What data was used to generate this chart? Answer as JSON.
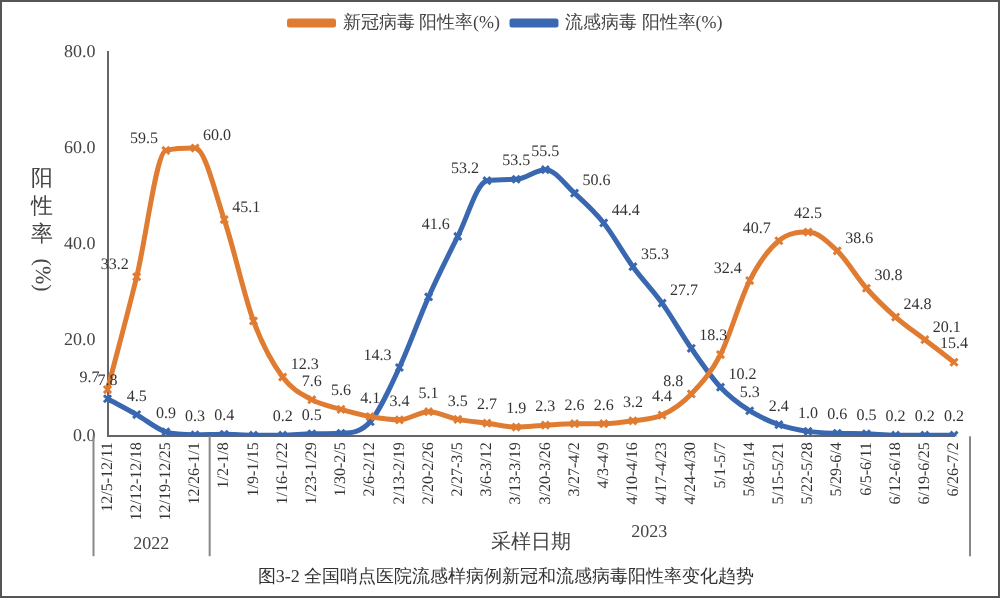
{
  "chart_data": {
    "type": "line",
    "title": "图3-2 全国哨点医院流感样病例新冠和流感病毒阳性率变化趋势",
    "xlabel": "采样日期",
    "ylabel": "阳性率(%)",
    "categories": [
      "12/5-12/11",
      "12/12-12/18",
      "12/19-12/25",
      "12/26-1/1",
      "1/2-1/8",
      "1/9-1/15",
      "1/16-1/22",
      "1/23-1/29",
      "1/30-2/5",
      "2/6-2/12",
      "2/13-2/19",
      "2/20-2/26",
      "2/27-3/5",
      "3/6-3/12",
      "3/13-3/19",
      "3/20-3/26",
      "3/27-4/2",
      "4/3-4/9",
      "4/10-4/16",
      "4/17-4/23",
      "4/24-4/30",
      "5/1-5/7",
      "5/8-5/14",
      "5/15-5/21",
      "5/22-5/28",
      "5/29-6/4",
      "6/5-6/11",
      "6/12-6/18",
      "6/19-6/25",
      "6/26-7/2"
    ],
    "series": [
      {
        "name": "新冠病毒 阳性率(%)",
        "color": "#e07b32",
        "values": [
          9.7,
          33.2,
          59.5,
          60.0,
          45.1,
          24,
          12.3,
          7.6,
          5.6,
          4.1,
          3.4,
          5.1,
          3.5,
          2.7,
          1.9,
          2.3,
          2.6,
          2.6,
          3.2,
          4.4,
          8.8,
          17,
          32.4,
          40.7,
          42.5,
          38.6,
          30.8,
          24.8,
          20.1,
          15.4
        ],
        "value_labels": [
          "9.7",
          "33.2",
          "59.5",
          "60.0",
          "45.1",
          null,
          "12.3",
          "7.6",
          "5.6",
          "4.1",
          "3.4",
          "5.1",
          "3.5",
          "2.7",
          "1.9",
          "2.3",
          "2.6",
          "2.6",
          "3.2",
          "4.4",
          "8.8",
          null,
          "32.4",
          "40.7",
          "42.5",
          "38.6",
          "30.8",
          "24.8",
          "20.1",
          "15.4"
        ]
      },
      {
        "name": "流感病毒 阳性率(%)",
        "color": "#3a68b0",
        "values": [
          7.8,
          4.5,
          0.9,
          0.3,
          0.4,
          0.2,
          0.2,
          0.5,
          0.6,
          3.0,
          14.3,
          29,
          41.6,
          53.2,
          53.5,
          55.5,
          50.6,
          44.4,
          35.3,
          27.7,
          18.3,
          10.2,
          5.3,
          2.4,
          1.0,
          0.6,
          0.5,
          0.2,
          0.2,
          0.2
        ],
        "value_labels": [
          "7.8",
          "4.5",
          "0.9",
          "0.3",
          "0.4",
          null,
          "0.2",
          "0.5",
          null,
          null,
          "14.3",
          null,
          "41.6",
          "53.2",
          "53.5",
          "55.5",
          "50.6",
          "44.4",
          "35.3",
          "27.7",
          "18.3",
          "10.2",
          "5.3",
          "2.4",
          "1.0",
          "0.6",
          "0.5",
          "0.2",
          "0.2",
          "0.2"
        ]
      }
    ],
    "ylim": [
      0,
      80
    ],
    "yticks": [
      {
        "value": 0,
        "label": "0.0"
      },
      {
        "value": 20,
        "label": "20.0"
      },
      {
        "value": 40,
        "label": "40.0"
      },
      {
        "value": 60,
        "label": "60.0"
      },
      {
        "value": 80,
        "label": "80.0"
      }
    ],
    "grid": false,
    "legend": "top",
    "marker": "cross",
    "line_style": "solid",
    "annotations": [
      "2022",
      "2023"
    ]
  }
}
